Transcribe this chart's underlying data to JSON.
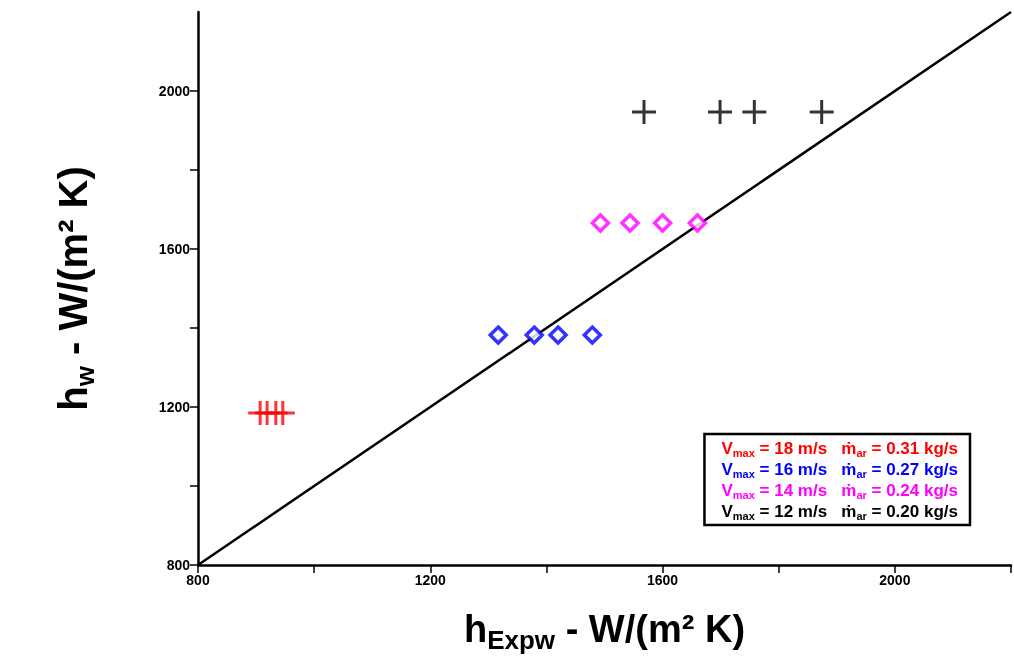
{
  "chart_data": {
    "type": "scatter",
    "xlabel": "h$_{Expw}$ - W/(m² K)",
    "ylabel": "h$_{w}$ - W/(m² K)",
    "xlim": [
      800,
      2200
    ],
    "ylim": [
      800,
      2200
    ],
    "xticks": [
      800,
      {
        "value": 1000,
        "label": null
      },
      1200,
      {
        "value": 1400,
        "label": null
      },
      1600,
      {
        "value": 1800,
        "label": null
      },
      2000,
      {
        "value": 2200,
        "label": null
      }
    ],
    "yticks": [
      800,
      {
        "value": 1000,
        "label": null
      },
      1200,
      {
        "value": 1400,
        "label": null
      },
      1600,
      {
        "value": 1800,
        "label": null
      },
      2000
    ],
    "grid": false,
    "legend": "bottom right",
    "series": [
      {
        "name": "V$_{max}$ = 18 m/s   ṁ$_{ar}$ = 0.31 kg/s",
        "color": "#ff0000",
        "marker": "cross",
        "x": [
          907,
          919,
          934,
          946
        ],
        "values": [
          1185,
          1185,
          1185,
          1185
        ]
      },
      {
        "name": "V$_{max}$ = 16 m/s   ṁ$_{ar}$ = 0.27 kg/s",
        "color": "#0000ff",
        "marker": "diamond",
        "x": [
          1317,
          1379,
          1420,
          1479
        ],
        "values": [
          1382,
          1382,
          1382,
          1382
        ]
      },
      {
        "name": "V$_{max}$ = 14 m/s   ṁ$_{ar}$ = 0.24 kg/s",
        "color": "#ff00ff",
        "marker": "diamond",
        "x": [
          1493,
          1544,
          1600,
          1660
        ],
        "values": [
          1666,
          1666,
          1666,
          1666
        ]
      },
      {
        "name": "V$_{max}$ = 12 m/s   ṁ$_{ar}$ = 0.20 kg/s",
        "color": "#000000",
        "marker": "cross",
        "x": [
          1568,
          1699,
          1758,
          1874
        ],
        "values": [
          1947,
          1947,
          1947,
          1947
        ]
      },
      {
        "type": "line",
        "color": "#000000",
        "marker": "none",
        "x": [
          800,
          2200
        ],
        "values": [
          800,
          2200
        ]
      }
    ]
  }
}
